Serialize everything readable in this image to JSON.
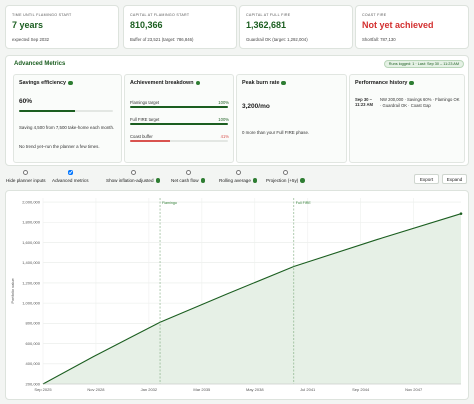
{
  "summary_cards": [
    {
      "label": "TIME UNTIL FLAMINGO START",
      "value": "7 years",
      "note": "expected Sep 2032"
    },
    {
      "label": "CAPITAL AT FLAMINGO START",
      "value": "810,366",
      "note": "Buffer of 23,521 (target: 786,846)"
    },
    {
      "label": "CAPITAL AT FULL FIRE",
      "value": "1,362,681",
      "note": "Guardrail OK (target: 1,292,004)"
    },
    {
      "label": "COAST FIRE",
      "value": "Not yet achieved",
      "note": "Shortfall: 787,130",
      "value_color": "#d32f2f"
    }
  ],
  "advanced_metrics": {
    "title": "Advanced Metrics",
    "badge": "Runs logged: 1 · Last: Sep 30 – 11:23 AM",
    "savings_efficiency": {
      "title": "Savings efficiency",
      "value": 60,
      "value_label": "60%",
      "color": "#1b5e20",
      "detail": "Saving 4,500 from 7,500 take-home each month.",
      "trend": "No trend yet–run the planner a few times."
    },
    "achievement_breakdown": {
      "title": "Achievement breakdown",
      "items": [
        {
          "name": "Flamingo target",
          "value": 100,
          "value_label": "100%",
          "color": "#1b5e20"
        },
        {
          "name": "Full FIRE target",
          "value": 100,
          "value_label": "100%",
          "color": "#1b5e20"
        },
        {
          "name": "Coast buffer",
          "value": 41,
          "value_label": "41%",
          "color": "#d9534f"
        }
      ]
    },
    "peak_burn_rate": {
      "title": "Peak burn rate",
      "value": "3,200/mo",
      "detail": "0 more than your Full FIRE phase."
    },
    "performance_history": {
      "title": "Performance history",
      "entries": [
        {
          "time": "Sep 30 – 11:23 AM",
          "summary": "NW 200,000 · Savings 60% · Flamingo OK · Guardrail OK · Coast Gap"
        }
      ]
    }
  },
  "controls": {
    "toggles": [
      {
        "label": "Hide planner inputs",
        "checked": false,
        "help": false
      },
      {
        "label": "Advanced metrics",
        "checked": true,
        "help": false
      },
      {
        "label": "Show inflation-adjusted",
        "checked": false,
        "help": true
      },
      {
        "label": "Net cash flow",
        "checked": false,
        "help": true
      },
      {
        "label": "Rolling average",
        "checked": false,
        "help": true
      },
      {
        "label": "Projection (+5y)",
        "checked": false,
        "help": true
      }
    ],
    "buttons": [
      "Export",
      "Expand"
    ]
  },
  "chart_data": {
    "type": "line",
    "y_label": "Portfolio value",
    "x": [
      "2025-09",
      "2028-09",
      "2032-09",
      "2036-09",
      "2040-09",
      "2045-09",
      "2050-09"
    ],
    "values": [
      200000,
      470000,
      810366,
      1090000,
      1362681,
      1630000,
      1885000
    ],
    "color": "#1b5e20",
    "area_color": "#e6f0e6",
    "xlim": [
      "2025-09",
      "2050-09"
    ],
    "ylim": [
      200000,
      2040000
    ],
    "xticks": [
      {
        "value": "2025-09",
        "label": "Sep 2025"
      },
      {
        "value": "2028-11",
        "label": "Nov 2028"
      },
      {
        "value": "2032-01",
        "label": "Jan 2032"
      },
      {
        "value": "2035-03",
        "label": "Mar 2035"
      },
      {
        "value": "2038-05",
        "label": "May 2038"
      },
      {
        "value": "2041-07",
        "label": "Jul 2041"
      },
      {
        "value": "2044-09",
        "label": "Sep 2044"
      },
      {
        "value": "2047-11",
        "label": "Nov 2047"
      }
    ],
    "yticks": [
      {
        "value": 200000,
        "label": "200,000"
      },
      {
        "value": 400000,
        "label": "400,000"
      },
      {
        "value": 600000,
        "label": "600,000"
      },
      {
        "value": 800000,
        "label": "800,000"
      },
      {
        "value": 1000000,
        "label": "1,000,000"
      },
      {
        "value": 1200000,
        "label": "1,200,000"
      },
      {
        "value": 1400000,
        "label": "1,400,000"
      },
      {
        "value": 1600000,
        "label": "1,600,000"
      },
      {
        "value": 1800000,
        "label": "1,800,000"
      },
      {
        "value": 2000000,
        "label": "2,000,000"
      }
    ],
    "grid": true,
    "annotations": [
      {
        "x": "2032-09",
        "label": "Flamingo"
      },
      {
        "x": "2040-09",
        "label": "Full FIRE"
      }
    ]
  }
}
